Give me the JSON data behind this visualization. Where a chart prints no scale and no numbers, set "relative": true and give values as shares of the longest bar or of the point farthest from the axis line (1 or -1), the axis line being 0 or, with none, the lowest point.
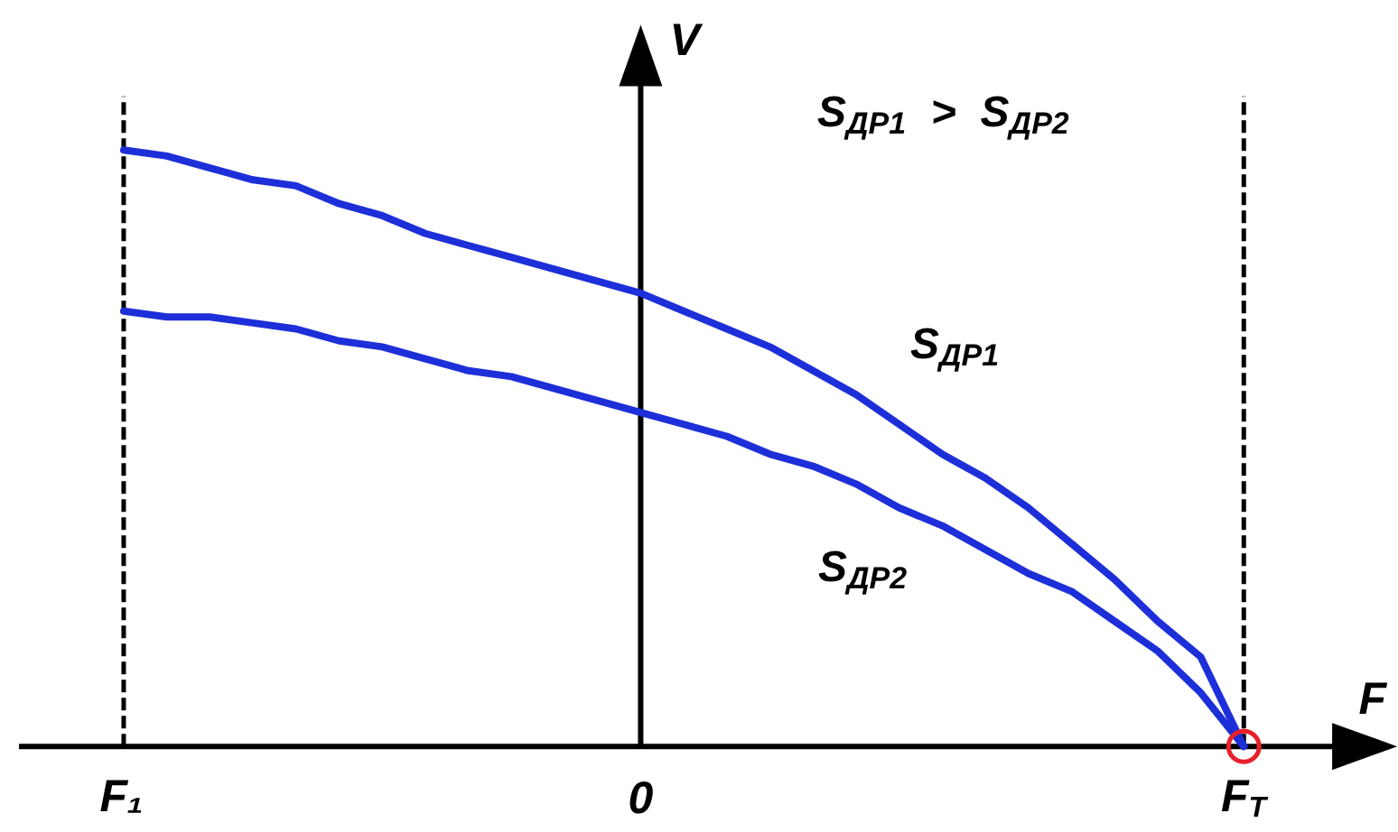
{
  "chart_data": {
    "type": "line",
    "relative": true,
    "annotations": [
      "S$_{ДР1}$ > S$_{ДР2}$"
    ],
    "xlabel": "F",
    "ylabel": "V",
    "categories": [
      "F₁",
      null,
      null,
      null,
      null,
      null,
      null,
      null,
      null,
      null,
      null,
      null,
      "0",
      null,
      null,
      null,
      null,
      null,
      null,
      null,
      null,
      null,
      null,
      null,
      null,
      null,
      "F$_{T}$"
    ],
    "series": [
      {
        "name": "S$_{ДР1}$",
        "color": "#1d2fd8",
        "values": [
          1,
          0.99,
          0.97,
          0.95,
          0.94,
          0.91,
          0.89,
          0.86,
          0.84,
          0.82,
          0.8,
          0.78,
          0.76,
          0.73,
          0.7,
          0.67,
          0.63,
          0.59,
          0.54,
          0.49,
          0.45,
          0.4,
          0.34,
          0.28,
          0.21,
          0.15,
          0
        ]
      },
      {
        "name": "S$_{ДР2}$",
        "color": "#1d2fd8",
        "values": [
          0.73,
          0.72,
          0.72,
          0.71,
          0.7,
          0.68,
          0.67,
          0.65,
          0.63,
          0.62,
          0.6,
          0.58,
          0.56,
          0.54,
          0.52,
          0.49,
          0.47,
          0.44,
          0.4,
          0.37,
          0.33,
          0.29,
          0.26,
          0.21,
          0.16,
          0.09,
          0
        ]
      },
      {
        "type": "scatter",
        "color": "#e8202a",
        "marker": "circle",
        "values": [
          null,
          null,
          null,
          null,
          null,
          null,
          null,
          null,
          null,
          null,
          null,
          null,
          null,
          null,
          null,
          null,
          null,
          null,
          null,
          null,
          null,
          null,
          null,
          null,
          null,
          null,
          0
        ]
      }
    ],
    "ref_lines": [
      {
        "axis": "x",
        "value": "F₁",
        "color": "#000000",
        "line_style": "dashed"
      },
      {
        "axis": "x",
        "value": "F$_{T}$",
        "color": "#000000",
        "line_style": "dashed"
      }
    ],
    "grid": false,
    "legend": false,
    "marker": "none",
    "line_style": "solid"
  }
}
